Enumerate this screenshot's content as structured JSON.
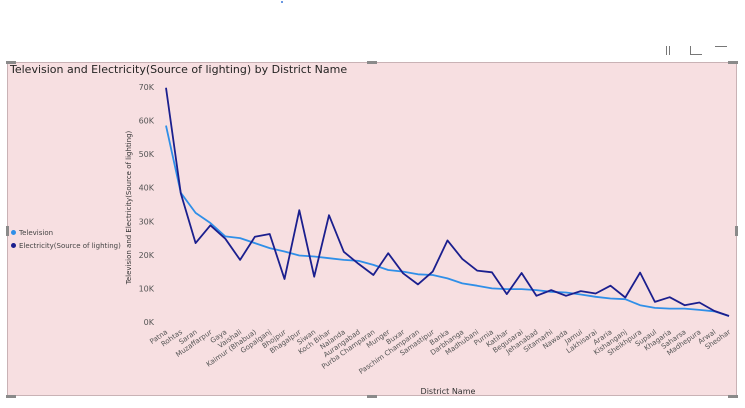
{
  "chart_title": "Television and Electricity(Source of lighting) by District Name",
  "header_icons": [
    "filter-icon",
    "focus-mode-icon",
    "more-options-icon"
  ],
  "legend": {
    "placement": "left",
    "items": [
      {
        "label": "Television",
        "color": "#2f8fe8"
      },
      {
        "label": "Electricity(Source of lighting)",
        "color": "#1b1f8e"
      }
    ]
  },
  "colors": {
    "background": "#f7dfe1",
    "television": "#2f8fe8",
    "electricity": "#1b1f8e"
  },
  "chart_data": {
    "type": "line",
    "title": "Television and Electricity(Source of lighting) by District Name",
    "xlabel": "District Name",
    "ylabel": "Television and Electricity(Source of lighting)",
    "ylim": [
      0,
      70000
    ],
    "yticks": [
      "0K",
      "10K",
      "20K",
      "30K",
      "40K",
      "50K",
      "60K",
      "70K"
    ],
    "grid": false,
    "legend_position": "left",
    "categories": [
      "Patna",
      "Rohtas",
      "Saran",
      "Muzaffarpur",
      "Gaya",
      "Vaishali",
      "Kaimur (Bhabua)",
      "Gopalganj",
      "Bhojpur",
      "Bhagalpur",
      "Siwan",
      "Koch Bihar",
      "Nalanda",
      "Aurangabad",
      "Purba Champaran",
      "Munger",
      "Buxar",
      "Paschim Champaran",
      "Samastipur",
      "Banka",
      "Darbhanga",
      "Madhubani",
      "Purnia",
      "Katihar",
      "Begusarai",
      "Jehanabad",
      "Sitamarhi",
      "Nawada",
      "Jamui",
      "Lakhisarai",
      "Araria",
      "Kishanganj",
      "Sheikhpura",
      "Supaul",
      "Khagaria",
      "Saharsa",
      "Madhepura",
      "Arwal",
      "Sheohar"
    ],
    "series": [
      {
        "name": "Television",
        "color": "#2f8fe8",
        "values": [
          58500,
          38500,
          32500,
          29500,
          25500,
          25000,
          23500,
          22000,
          21000,
          19800,
          19500,
          19000,
          18500,
          18200,
          17000,
          15500,
          15000,
          14200,
          14000,
          13000,
          11500,
          10800,
          10000,
          9800,
          9800,
          9500,
          9000,
          8800,
          8200,
          7500,
          7000,
          6800,
          5000,
          4200,
          4000,
          4000,
          3600,
          3200,
          1800
        ]
      },
      {
        "name": "Electricity(Source of lighting)",
        "color": "#1b1f8e",
        "values": [
          69800,
          38300,
          23500,
          28800,
          24800,
          18500,
          25400,
          26200,
          12800,
          33300,
          13500,
          31800,
          20900,
          17300,
          14000,
          20500,
          14500,
          11200,
          15000,
          24300,
          18800,
          15300,
          14800,
          8300,
          14600,
          7800,
          9500,
          7800,
          9200,
          8500,
          10800,
          7300,
          14700,
          6000,
          7400,
          5000,
          5800,
          3300,
          1800
        ]
      }
    ]
  }
}
